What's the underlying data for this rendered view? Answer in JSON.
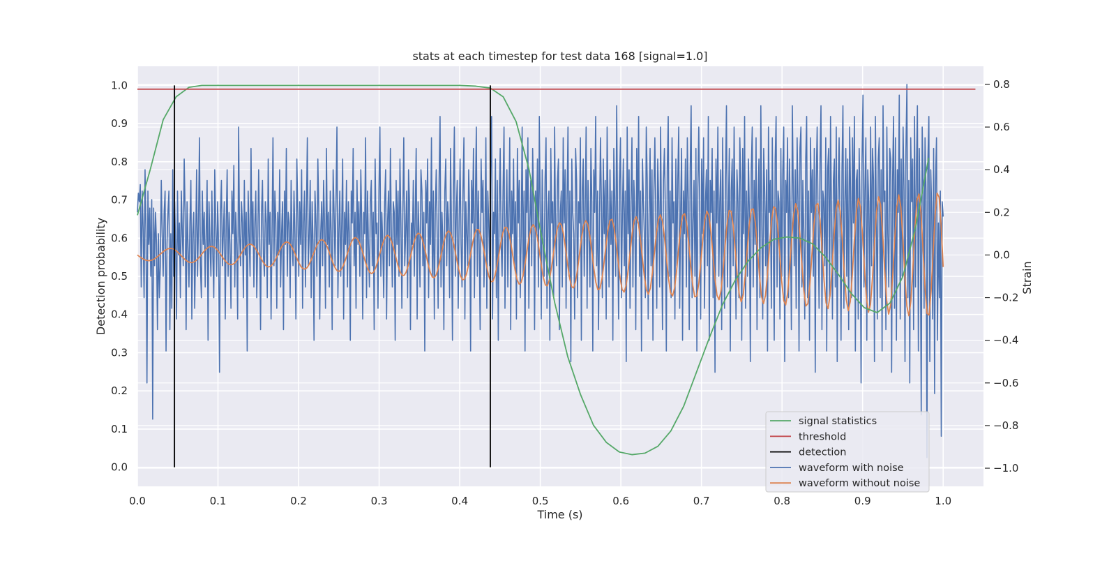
{
  "chart_data": {
    "type": "line",
    "title": "stats at each timestep for test data 168 [signal=1.0]",
    "xlabel": "Time (s)",
    "ylabel_left": "Detection probability",
    "ylabel_right": "Strain",
    "xlim": [
      0.0,
      1.05
    ],
    "ylim_left": [
      -0.05,
      1.05
    ],
    "ylim_right": [
      -1.085,
      0.885
    ],
    "xticks": [
      "0.0",
      "0.1",
      "0.2",
      "0.3",
      "0.4",
      "0.5",
      "0.6",
      "0.7",
      "0.8",
      "0.9",
      "1.0"
    ],
    "yticks_left": [
      "0.0",
      "0.1",
      "0.2",
      "0.3",
      "0.4",
      "0.5",
      "0.6",
      "0.7",
      "0.8",
      "0.9",
      "1.0"
    ],
    "yticks_right": [
      "−1.0",
      "−0.8",
      "−0.6",
      "−0.4",
      "−0.2",
      "0.0",
      "0.2",
      "0.4",
      "0.6",
      "0.8"
    ],
    "grid": true,
    "legend_position": "lower-right",
    "threshold": 0.99,
    "detections": [
      0.046,
      0.438
    ],
    "colors": {
      "signal statistics": "#55a868",
      "threshold": "#c44e52",
      "detection": "#000000",
      "waveform with noise": "#4c72b0",
      "waveform without noise": "#dd8452"
    },
    "series": [
      {
        "name": "signal statistics",
        "axis": "left",
        "x": [
          0.0,
          0.016,
          0.032,
          0.048,
          0.064,
          0.08,
          0.1,
          0.2,
          0.3,
          0.4,
          0.42,
          0.438,
          0.454,
          0.47,
          0.486,
          0.502,
          0.518,
          0.534,
          0.55,
          0.566,
          0.582,
          0.598,
          0.614,
          0.63,
          0.646,
          0.662,
          0.678,
          0.694,
          0.71,
          0.726,
          0.742,
          0.758,
          0.774,
          0.79,
          0.806,
          0.822,
          0.838,
          0.854,
          0.87,
          0.886,
          0.902,
          0.918,
          0.934,
          0.95,
          0.966,
          0.982
        ],
        "values": [
          0.66,
          0.78,
          0.91,
          0.97,
          0.995,
          1.0,
          1.0,
          1.0,
          1.0,
          1.0,
          0.998,
          0.993,
          0.97,
          0.905,
          0.78,
          0.6,
          0.43,
          0.29,
          0.19,
          0.11,
          0.065,
          0.04,
          0.033,
          0.037,
          0.055,
          0.095,
          0.16,
          0.25,
          0.34,
          0.425,
          0.49,
          0.54,
          0.575,
          0.597,
          0.603,
          0.6,
          0.585,
          0.55,
          0.505,
          0.455,
          0.418,
          0.405,
          0.43,
          0.5,
          0.63,
          0.81
        ]
      },
      {
        "name": "waveform with noise",
        "axis": "right",
        "x_start": 0.0,
        "x_end": 1.0,
        "values": [
          0.2,
          0.29,
          0.25,
          0.33,
          -0.15,
          0.3,
          0.12,
          -0.2,
          0.4,
          0.1,
          -0.6,
          0.3,
          0.05,
          0.22,
          -0.1,
          0.26,
          -0.77,
          0.22,
          -0.05,
          0.2,
          0.05,
          -0.35,
          0.1,
          -0.2,
          -0.05,
          0.35,
          0.1,
          -0.1,
          0.2,
          0.3,
          -0.45,
          0.05,
          0.2,
          0.3,
          -0.35,
          0.1,
          -0.25,
          0.4,
          -0.1,
          0.25,
          0.05,
          -0.3,
          0.3,
          0.0,
          0.15,
          -0.2,
          0.3,
          0.1,
          -0.05,
          0.45,
          0.2,
          -0.35,
          0.25,
          0.05,
          -0.15,
          0.15,
          0.35,
          -0.3,
          0.1,
          0.2,
          -0.25,
          0.05,
          0.4,
          -0.1,
          0.15,
          0.55,
          -0.05,
          -0.2,
          0.3,
          0.05,
          0.2,
          -0.15,
          0.1,
          0.35,
          -0.4,
          0.25,
          0.05,
          -0.1,
          0.3,
          0.0,
          -0.2,
          0.4,
          0.15,
          -0.1,
          0.25,
          0.05,
          -0.55,
          0.2,
          0.35,
          -0.05,
          0.1,
          0.25,
          -0.3,
          0.15,
          0.4,
          -0.1,
          0.2,
          0.05,
          -0.25,
          0.3,
          0.1,
          0.42,
          -0.15,
          0.2,
          0.05,
          -0.3,
          0.6,
          0.1,
          -0.05,
          0.25,
          0.15,
          -0.2,
          0.35,
          0.0,
          0.2,
          -0.45,
          0.3,
          0.1,
          -0.1,
          0.5,
          0.05,
          0.25,
          -0.15,
          0.15,
          0.3,
          -0.2,
          0.05,
          0.4,
          0.1,
          -0.35,
          0.2,
          0.35,
          0.0,
          -0.1,
          0.25,
          0.15,
          -0.2,
          0.45,
          0.05,
          0.2,
          -0.3,
          0.1,
          0.55,
          -0.05,
          0.3,
          0.15,
          -0.25,
          0.2,
          0.0,
          0.4,
          -0.15,
          0.1,
          0.25,
          -0.35,
          0.3,
          0.05,
          0.5,
          -0.1,
          0.2,
          0.15,
          -0.2,
          0.35,
          0.05,
          -0.05,
          0.3,
          0.1,
          -0.3,
          0.45,
          0.2,
          -0.1,
          0.25,
          0.05,
          0.4,
          -0.25,
          0.15,
          0.3,
          -0.15,
          0.2,
          0.55,
          -0.05,
          0.1,
          0.35,
          -0.2,
          0.25,
          0.05,
          -0.4,
          0.3,
          0.15,
          -0.1,
          0.45,
          0.2,
          -0.3,
          0.1,
          0.25,
          -0.05,
          0.35,
          0.15,
          -0.25,
          0.5,
          0.05,
          0.2,
          -0.15,
          0.3,
          0.1,
          -0.35,
          0.4,
          0.2,
          -0.05,
          0.25,
          0.6,
          -0.2,
          0.1,
          0.3,
          -0.1,
          0.15,
          0.45,
          -0.3,
          0.2,
          0.05,
          0.35,
          -0.15,
          0.25,
          0.1,
          -0.4,
          0.3,
          0.15,
          0.5,
          -0.05,
          0.2,
          -0.25,
          0.35,
          0.05,
          0.25,
          -0.1,
          0.4,
          0.15,
          -0.3,
          0.2,
          0.1,
          0.55,
          -0.2,
          0.3,
          0.05,
          -0.15,
          0.25,
          0.35,
          -0.05,
          0.2,
          -0.35,
          0.45,
          0.1,
          0.15,
          -0.25,
          0.3,
          0.6,
          -0.1,
          0.2,
          0.05,
          -0.2,
          0.25,
          0.4,
          -0.3,
          0.15,
          0.3,
          -0.05,
          0.5,
          0.1,
          -0.15,
          0.25,
          0.2,
          -0.4,
          0.35,
          0.05,
          0.3,
          -0.1,
          0.45,
          0.15,
          -0.25,
          0.2,
          0.55,
          -0.05,
          0.1,
          0.3,
          -0.2,
          0.4,
          0.25,
          -0.35,
          0.15,
          0.05,
          0.35,
          -0.1,
          0.2,
          0.5,
          -0.3,
          0.25,
          0.1,
          -0.15,
          0.4,
          0.3,
          -0.05,
          0.2,
          -0.45,
          0.35,
          0.15,
          0.45,
          -0.2,
          0.25,
          0.05,
          0.55,
          -0.1,
          0.3,
          -0.3,
          0.2,
          0.4,
          0.1,
          -0.25,
          0.35,
          0.65,
          -0.15,
          0.2,
          0.05,
          -0.35,
          0.3,
          0.45,
          -0.05,
          0.25,
          0.15,
          -0.2,
          0.5,
          0.1,
          -0.4,
          0.3,
          0.6,
          -0.1,
          0.2,
          0.35,
          -0.25,
          0.15,
          0.45,
          0.05,
          -0.15,
          0.3,
          0.55,
          -0.3,
          0.25,
          0.1,
          -0.05,
          0.4,
          0.2,
          -0.45,
          0.35,
          0.15,
          0.5,
          -0.2,
          0.25,
          0.6,
          -0.1,
          0.3,
          0.05,
          -0.35,
          0.45,
          0.2,
          0.35,
          -0.15,
          0.1,
          0.55,
          -0.25,
          0.3,
          0.15,
          -0.05,
          0.4,
          0.65,
          -0.3,
          0.2,
          0.1,
          0.45,
          -0.2,
          0.35,
          -0.4,
          0.25,
          0.5,
          0.05,
          -0.1,
          0.3,
          0.6,
          -0.25,
          0.15,
          0.4,
          -0.15,
          0.2,
          0.55,
          -0.35,
          0.3,
          0.1,
          0.45,
          -0.05,
          0.25,
          -0.3,
          0.5,
          0.15,
          0.35,
          -0.2,
          0.1,
          0.6,
          -0.1,
          0.3,
          -0.45,
          0.4,
          0.2,
          0.55,
          -0.25,
          0.15,
          0.35,
          -0.05,
          0.5,
          0.25,
          -0.35,
          0.3,
          0.1,
          0.45,
          -0.15,
          0.65,
          0.2,
          -0.3,
          0.4,
          0.05,
          -0.1,
          0.35,
          0.55,
          -0.25,
          0.2,
          0.3,
          -0.4,
          0.5,
          0.15,
          0.25,
          -0.2,
          0.6,
          0.1,
          -0.05,
          0.35,
          0.45,
          -0.35,
          0.2,
          0.3,
          -0.15,
          0.55,
          0.15,
          0.4,
          -0.25,
          0.25,
          0.6,
          -0.1,
          0.3,
          -0.5,
          0.45,
          0.2,
          0.1,
          -0.3,
          0.5,
          0.35,
          -0.2,
          0.25,
          0.15,
          0.55,
          -0.4,
          0.3,
          0.45,
          -0.1,
          0.2,
          0.6,
          -0.25,
          0.35,
          0.1,
          -0.15,
          0.5,
          0.25,
          -0.45,
          0.4,
          0.2,
          0.65,
          -0.05,
          0.3,
          -0.35,
          0.15,
          0.55,
          0.25,
          -0.2,
          0.45,
          0.1,
          0.35,
          -0.3,
          0.6,
          0.2,
          -0.15,
          0.4,
          0.05,
          0.3,
          -0.4,
          0.5,
          0.25,
          -0.1,
          0.7,
          0.15,
          -0.3,
          0.35,
          0.55,
          -0.2,
          0.2,
          0.45,
          -0.05,
          0.3,
          -0.5,
          0.6,
          0.1,
          0.4,
          -0.25,
          0.25,
          0.55,
          -0.15,
          0.35,
          0.2,
          -0.35,
          0.5,
          0.15,
          0.65,
          -0.1,
          0.3,
          -0.45,
          0.45,
          0.25,
          0.1,
          -0.2,
          0.6,
          0.35,
          -0.3,
          0.2,
          0.5,
          -0.05,
          0.4,
          -0.4,
          0.3,
          0.55,
          0.15,
          -0.25,
          0.45,
          0.25,
          -0.15,
          0.6,
          0.1,
          -0.35,
          0.35,
          0.5,
          0.2,
          -0.45,
          0.4,
          0.65,
          -0.1,
          0.3,
          -0.2,
          0.55,
          0.15,
          0.25,
          -0.3,
          0.45,
          -0.05,
          0.35,
          0.6,
          -0.25,
          0.2,
          0.5,
          -0.4,
          0.3,
          0.1,
          0.45,
          -0.15,
          0.55,
          0.25,
          -0.35,
          0.4,
          0.7,
          -0.2,
          0.15,
          0.35,
          -0.1,
          0.5,
          -0.45,
          0.3,
          0.6,
          0.2,
          -0.3,
          0.45,
          0.1,
          0.55,
          -0.25,
          0.25,
          0.4,
          -0.05,
          0.65,
          -0.4,
          0.35,
          0.2,
          0.5,
          -0.2,
          0.3,
          -0.55,
          0.45,
          0.15,
          0.6,
          -0.1,
          0.25,
          0.4,
          -0.35,
          0.55,
          0.05,
          -0.25,
          0.35,
          0.7,
          -0.15,
          0.2,
          0.5,
          -0.45,
          0.3,
          0.45,
          -0.05,
          0.6,
          0.15,
          -0.3,
          0.4,
          0.25,
          -0.2,
          0.55,
          0.35,
          -0.4,
          0.5,
          0.1,
          0.65,
          -0.25,
          0.3,
          -0.1,
          0.45,
          0.2,
          -0.5,
          0.4,
          0.6,
          -0.15,
          0.35,
          0.05,
          0.55,
          -0.35,
          0.25,
          0.45,
          -0.2,
          0.7,
          0.15,
          -0.3,
          0.5,
          0.3,
          -0.05,
          0.4,
          -0.45,
          0.6,
          0.2,
          0.35,
          -0.25,
          0.55,
          0.1,
          -0.4,
          0.45,
          0.65,
          -0.15,
          0.3,
          0.25,
          -0.3,
          0.5,
          -0.1,
          0.4,
          0.6,
          -0.5,
          0.35,
          0.2,
          0.55,
          -0.2,
          0.45,
          0.15,
          -0.35,
          0.7,
          0.3,
          -0.05,
          0.4,
          -0.25,
          0.55,
          0.25,
          -0.45,
          0.5,
          0.6,
          -0.15,
          0.35,
          0.1,
          -0.3,
          0.45,
          0.65,
          -0.2,
          0.3,
          -0.4,
          0.55,
          0.2,
          0.4,
          -0.1,
          0.5,
          -0.55,
          0.35,
          0.6,
          0.15,
          -0.25,
          0.45,
          0.7,
          -0.35,
          0.3,
          0.25,
          -0.05,
          0.55,
          -0.45,
          0.4,
          0.5,
          -0.2,
          0.65,
          0.2,
          -0.3,
          0.35,
          0.45,
          -0.15,
          0.6,
          -0.5,
          0.3,
          0.55,
          0.1,
          -0.4,
          0.4,
          0.7,
          -0.25,
          0.25,
          0.5,
          -0.1,
          0.45,
          -0.35,
          0.6,
          0.3,
          -0.2,
          0.55,
          0.15,
          0.65,
          -0.45,
          0.35,
          0.4,
          -0.3,
          0.5,
          0.2,
          -0.6,
          0.45,
          0.75,
          -0.15,
          0.3,
          0.55,
          -0.4,
          0.4,
          0.25,
          -0.25,
          0.6,
          -0.05,
          0.5,
          0.35,
          -0.5,
          0.65,
          0.15,
          -0.3,
          0.45,
          0.55,
          -0.2,
          0.4,
          -0.45,
          0.7,
          0.25,
          0.3,
          -0.35,
          0.6,
          0.1,
          -0.15,
          0.5,
          0.45,
          -0.55,
          0.35,
          0.65,
          -0.25,
          0.55,
          -0.4,
          0.4,
          0.2,
          0.75,
          -0.3,
          0.45,
          -0.1,
          0.6,
          0.3,
          -0.5,
          0.5,
          0.8,
          -0.2,
          0.35,
          -0.6,
          0.55,
          0.25,
          0.45,
          -0.35,
          0.65,
          -0.15,
          0.4,
          0.7,
          -0.45,
          0.5,
          0.15,
          -0.75,
          0.6,
          0.35,
          -0.25,
          0.55,
          0.3,
          -0.95,
          0.45,
          0.65,
          -0.5,
          0.4,
          0.2,
          -0.3,
          0.5,
          -0.65,
          0.35,
          0.55,
          -0.4,
          0.15,
          -0.2,
          0.3,
          -0.85,
          0.25,
          0.18
        ]
      },
      {
        "name": "waveform without noise",
        "axis": "right",
        "x_start": 0.0,
        "x_end": 1.0,
        "chirp": {
          "points": 400,
          "amplitude_start": 0.025,
          "amplitude_end": 0.3,
          "frequency_start_hz": 18.0,
          "frequency_end_hz": 42.0,
          "phase": 3.14159
        }
      }
    ],
    "legend": [
      "signal statistics",
      "threshold",
      "detection",
      "waveform with noise",
      "waveform without noise"
    ]
  }
}
